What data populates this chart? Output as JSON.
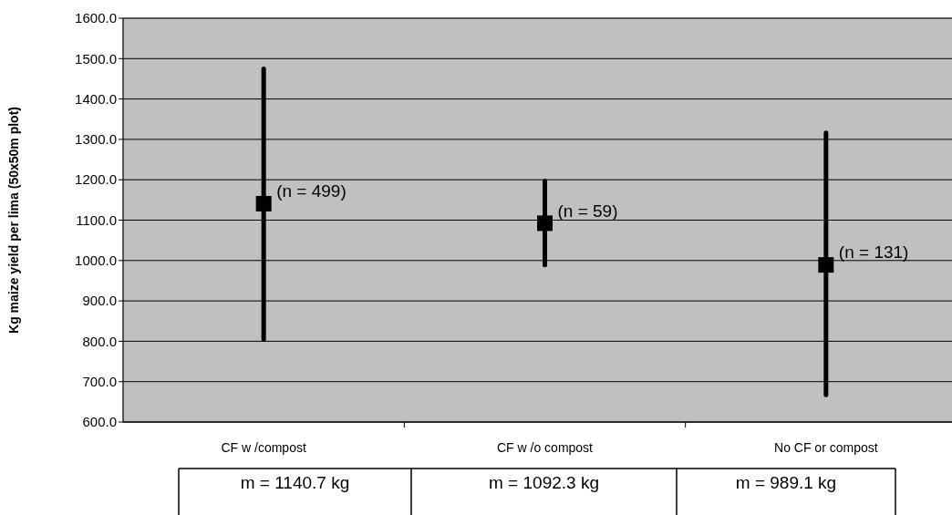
{
  "chart_data": {
    "type": "scatter",
    "ylabel": "Kg maize yield per lima (50x50m plot)",
    "categories": [
      "CF w /compost",
      "CF w /o compost",
      "No CF or compost"
    ],
    "values": [
      1140.7,
      1092.3,
      989.1
    ],
    "errors": [
      [
        805,
        1475
      ],
      [
        989,
        1197
      ],
      [
        667,
        1316
      ]
    ],
    "value_labels": [
      "m = 1140.7 kg",
      "m = 1092.3 kg",
      "m = 989.1 kg"
    ],
    "color": "#000000",
    "marker": "square",
    "grid": "y",
    "ylim": [
      600,
      1600
    ],
    "yticks": [
      {
        "value": 600,
        "label": "600.0"
      },
      {
        "value": 700,
        "label": "700.0"
      },
      {
        "value": 800,
        "label": "800.0"
      },
      {
        "value": 900,
        "label": "900.0"
      },
      {
        "value": 1000,
        "label": "1000.0"
      },
      {
        "value": 1100,
        "label": "1100.0"
      },
      {
        "value": 1200,
        "label": "1200.0"
      },
      {
        "value": 1300,
        "label": "1300.0"
      },
      {
        "value": 1400,
        "label": "1400.0"
      },
      {
        "value": 1500,
        "label": "1500.0"
      },
      {
        "value": 1600,
        "label": "1600.0"
      }
    ],
    "annotations": [
      {
        "text": "(n = 499)",
        "x": "CF w /compost",
        "y": 1140.7
      },
      {
        "text": "(n = 59)",
        "x": "CF w /o compost",
        "y": 1092.3
      },
      {
        "text": "(n = 131)",
        "x": "No CF or compost",
        "y": 989.1
      }
    ]
  }
}
